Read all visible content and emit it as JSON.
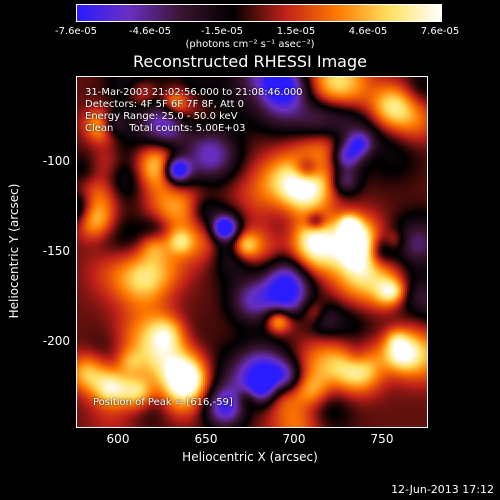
{
  "colorbar": {
    "ticks": [
      "-7.6e-05",
      "-4.6e-05",
      "-1.5e-05",
      "1.5e-05",
      "4.6e-05",
      "7.6e-05"
    ],
    "units": "(photons cm⁻² s⁻¹ asec⁻²)",
    "colors": [
      "#2a1cff",
      "#6a2fc0",
      "#3a1430",
      "#000000",
      "#c0201a",
      "#ff7a00",
      "#ffe060",
      "#ffffff"
    ]
  },
  "title": "Reconstructed RHESSI Image",
  "annotation": {
    "time_range": "31-Mar-2003 21:02:56.000 to 21:08:46.000",
    "detectors": "Detectors: 4F 5F 6F 7F 8F, Att 0",
    "energy": "Energy Range: 25.0 - 50.0 keV",
    "clean": "Clean     Total counts: 5.00E+03",
    "peak": "Position of Peak = [616,-59]"
  },
  "axes": {
    "xlabel": "Heliocentric X (arcsec)",
    "ylabel": "Heliocentric Y (arcsec)",
    "xticks": [
      "600",
      "650",
      "700",
      "750"
    ],
    "yticks": [
      "-100",
      "-150",
      "-200"
    ]
  },
  "datestamp": "12-Jun-2013 17:12"
}
